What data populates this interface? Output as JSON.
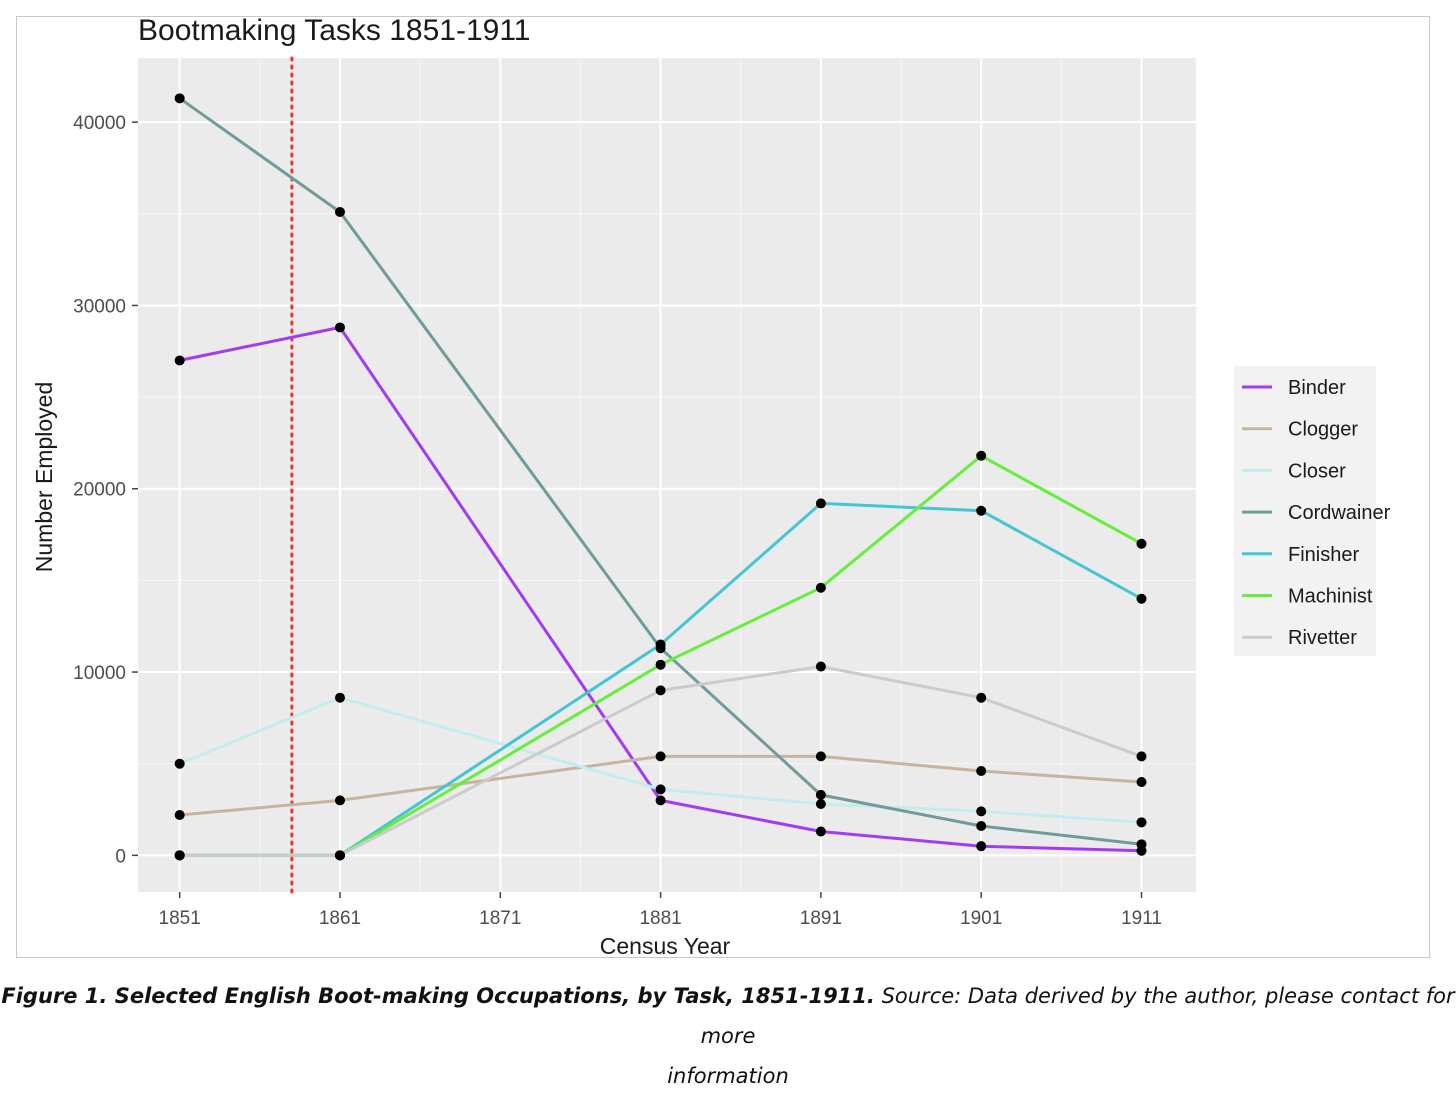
{
  "chart_data": {
    "type": "line",
    "title": "Bootmaking Tasks 1851-1911",
    "xlabel": "Census Year",
    "ylabel": "Number Employed",
    "x": [
      1851,
      1861,
      1871,
      1881,
      1891,
      1901,
      1911
    ],
    "x_ticks": [
      "1851",
      "1861",
      "1871",
      "1881",
      "1891",
      "1901",
      "1911"
    ],
    "y_ticks": [
      "0",
      "10000",
      "20000",
      "30000",
      "40000"
    ],
    "xlim": [
      1848.4,
      1914.4
    ],
    "ylim": [
      -2000,
      43500
    ],
    "grid": true,
    "legend_position": "right",
    "reference_line": {
      "x": 1858,
      "color": "#ff2a2a",
      "style": "dotted"
    },
    "series": [
      {
        "name": "Binder",
        "color": "#a23cf2",
        "points": [
          [
            1851,
            27000
          ],
          [
            1861,
            28800
          ],
          [
            1881,
            3000
          ],
          [
            1891,
            1300
          ],
          [
            1901,
            500
          ],
          [
            1911,
            250
          ]
        ]
      },
      {
        "name": "Clogger",
        "color": "#c8b49e",
        "points": [
          [
            1851,
            2200
          ],
          [
            1861,
            3000
          ],
          [
            1881,
            5400
          ],
          [
            1891,
            5400
          ],
          [
            1901,
            4600
          ],
          [
            1911,
            4000
          ]
        ]
      },
      {
        "name": "Closer",
        "color": "#c3ecef",
        "points": [
          [
            1851,
            5000
          ],
          [
            1861,
            8600
          ],
          [
            1881,
            3600
          ],
          [
            1891,
            2800
          ],
          [
            1901,
            2400
          ],
          [
            1911,
            1800
          ]
        ]
      },
      {
        "name": "Cordwainer",
        "color": "#6f9c9a",
        "points": [
          [
            1851,
            41300
          ],
          [
            1861,
            35100
          ],
          [
            1881,
            11300
          ],
          [
            1891,
            3300
          ],
          [
            1901,
            1600
          ],
          [
            1911,
            600
          ]
        ]
      },
      {
        "name": "Finisher",
        "color": "#45c5d3",
        "points": [
          [
            1851,
            0
          ],
          [
            1861,
            0
          ],
          [
            1881,
            11500
          ],
          [
            1891,
            19200
          ],
          [
            1901,
            18800
          ],
          [
            1911,
            14000
          ]
        ]
      },
      {
        "name": "Machinist",
        "color": "#66ee3c",
        "points": [
          [
            1851,
            0
          ],
          [
            1861,
            0
          ],
          [
            1881,
            10400
          ],
          [
            1891,
            14600
          ],
          [
            1901,
            21800
          ],
          [
            1911,
            17000
          ]
        ]
      },
      {
        "name": "Rivetter",
        "color": "#cbcbcb",
        "points": [
          [
            1851,
            0
          ],
          [
            1861,
            0
          ],
          [
            1881,
            9000
          ],
          [
            1891,
            10300
          ],
          [
            1901,
            8600
          ],
          [
            1911,
            5400
          ]
        ]
      }
    ]
  },
  "caption": {
    "bold": "Figure 1. Selected English Boot-making Occupations, by Task, 1851-1911.",
    "rest": " Source: Data derived by the author, please contact for more",
    "line2": "information"
  }
}
